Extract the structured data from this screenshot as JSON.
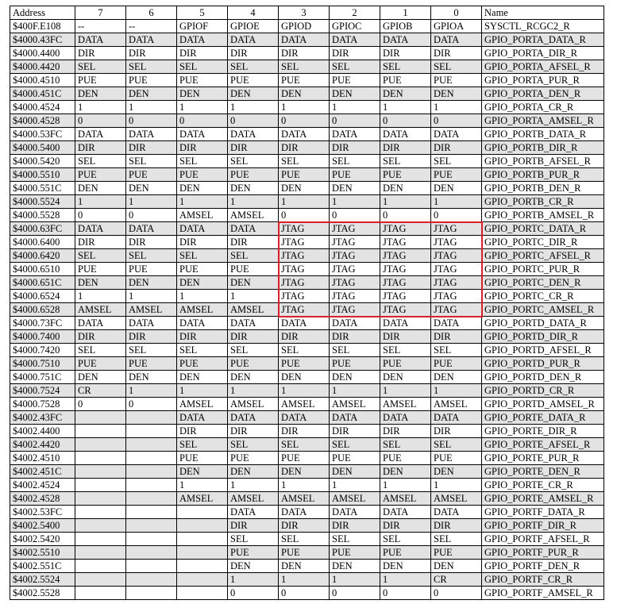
{
  "headers": [
    "Address",
    "7",
    "6",
    "5",
    "4",
    "3",
    "2",
    "1",
    "0",
    "Name"
  ],
  "rows": [
    [
      "$400F.E108",
      "--",
      "--",
      "GPIOF",
      "GPIOE",
      "GPIOD",
      "GPIOC",
      "GPIOB",
      "GPIOA",
      "SYSCTL_RCGC2_R"
    ],
    [
      "$4000.43FC",
      "DATA",
      "DATA",
      "DATA",
      "DATA",
      "DATA",
      "DATA",
      "DATA",
      "DATA",
      "GPIO_PORTA_DATA_R"
    ],
    [
      "$4000.4400",
      "DIR",
      "DIR",
      "DIR",
      "DIR",
      "DIR",
      "DIR",
      "DIR",
      "DIR",
      "GPIO_PORTA_DIR_R"
    ],
    [
      "$4000.4420",
      "SEL",
      "SEL",
      "SEL",
      "SEL",
      "SEL",
      "SEL",
      "SEL",
      "SEL",
      "GPIO_PORTA_AFSEL_R"
    ],
    [
      "$4000.4510",
      "PUE",
      "PUE",
      "PUE",
      "PUE",
      "PUE",
      "PUE",
      "PUE",
      "PUE",
      "GPIO_PORTA_PUR_R"
    ],
    [
      "$4000.451C",
      "DEN",
      "DEN",
      "DEN",
      "DEN",
      "DEN",
      "DEN",
      "DEN",
      "DEN",
      "GPIO_PORTA_DEN_R"
    ],
    [
      "$4000.4524",
      "1",
      "1",
      "1",
      "1",
      "1",
      "1",
      "1",
      "1",
      "GPIO_PORTA_CR_R"
    ],
    [
      "$4000.4528",
      "0",
      "0",
      "0",
      "0",
      "0",
      "0",
      "0",
      "0",
      "GPIO_PORTA_AMSEL_R"
    ],
    [
      "$4000.53FC",
      "DATA",
      "DATA",
      "DATA",
      "DATA",
      "DATA",
      "DATA",
      "DATA",
      "DATA",
      "GPIO_PORTB_DATA_R"
    ],
    [
      "$4000.5400",
      "DIR",
      "DIR",
      "DIR",
      "DIR",
      "DIR",
      "DIR",
      "DIR",
      "DIR",
      "GPIO_PORTB_DIR_R"
    ],
    [
      "$4000.5420",
      "SEL",
      "SEL",
      "SEL",
      "SEL",
      "SEL",
      "SEL",
      "SEL",
      "SEL",
      "GPIO_PORTB_AFSEL_R"
    ],
    [
      "$4000.5510",
      "PUE",
      "PUE",
      "PUE",
      "PUE",
      "PUE",
      "PUE",
      "PUE",
      "PUE",
      "GPIO_PORTB_PUR_R"
    ],
    [
      "$4000.551C",
      "DEN",
      "DEN",
      "DEN",
      "DEN",
      "DEN",
      "DEN",
      "DEN",
      "DEN",
      "GPIO_PORTB_DEN_R"
    ],
    [
      "$4000.5524",
      "1",
      "1",
      "1",
      "1",
      "1",
      "1",
      "1",
      "1",
      "GPIO_PORTB_CR_R"
    ],
    [
      "$4000.5528",
      "0",
      "0",
      "AMSEL",
      "AMSEL",
      "0",
      "0",
      "0",
      "0",
      "GPIO_PORTB_AMSEL_R"
    ],
    [
      "$4000.63FC",
      "DATA",
      "DATA",
      "DATA",
      "DATA",
      "JTAG",
      "JTAG",
      "JTAG",
      "JTAG",
      "GPIO_PORTC_DATA_R"
    ],
    [
      "$4000.6400",
      "DIR",
      "DIR",
      "DIR",
      "DIR",
      "JTAG",
      "JTAG",
      "JTAG",
      "JTAG",
      "GPIO_PORTC_DIR_R"
    ],
    [
      "$4000.6420",
      "SEL",
      "SEL",
      "SEL",
      "SEL",
      "JTAG",
      "JTAG",
      "JTAG",
      "JTAG",
      "GPIO_PORTC_AFSEL_R"
    ],
    [
      "$4000.6510",
      "PUE",
      "PUE",
      "PUE",
      "PUE",
      "JTAG",
      "JTAG",
      "JTAG",
      "JTAG",
      "GPIO_PORTC_PUR_R"
    ],
    [
      "$4000.651C",
      "DEN",
      "DEN",
      "DEN",
      "DEN",
      "JTAG",
      "JTAG",
      "JTAG",
      "JTAG",
      "GPIO_PORTC_DEN_R"
    ],
    [
      "$4000.6524",
      "1",
      "1",
      "1",
      "1",
      "JTAG",
      "JTAG",
      "JTAG",
      "JTAG",
      "GPIO_PORTC_CR_R"
    ],
    [
      "$4000.6528",
      "AMSEL",
      "AMSEL",
      "AMSEL",
      "AMSEL",
      "JTAG",
      "JTAG",
      "JTAG",
      "JTAG",
      "GPIO_PORTC_AMSEL_R"
    ],
    [
      "$4000.73FC",
      "DATA",
      "DATA",
      "DATA",
      "DATA",
      "DATA",
      "DATA",
      "DATA",
      "DATA",
      "GPIO_PORTD_DATA_R"
    ],
    [
      "$4000.7400",
      "DIR",
      "DIR",
      "DIR",
      "DIR",
      "DIR",
      "DIR",
      "DIR",
      "DIR",
      "GPIO_PORTD_DIR_R"
    ],
    [
      "$4000.7420",
      "SEL",
      "SEL",
      "SEL",
      "SEL",
      "SEL",
      "SEL",
      "SEL",
      "SEL",
      "GPIO_PORTD_AFSEL_R"
    ],
    [
      "$4000.7510",
      "PUE",
      "PUE",
      "PUE",
      "PUE",
      "PUE",
      "PUE",
      "PUE",
      "PUE",
      "GPIO_PORTD_PUR_R"
    ],
    [
      "$4000.751C",
      "DEN",
      "DEN",
      "DEN",
      "DEN",
      "DEN",
      "DEN",
      "DEN",
      "DEN",
      "GPIO_PORTD_DEN_R"
    ],
    [
      "$4000.7524",
      "CR",
      "1",
      "1",
      "1",
      "1",
      "1",
      "1",
      "1",
      "GPIO_PORTD_CR_R"
    ],
    [
      "$4000.7528",
      "0",
      "0",
      "AMSEL",
      "AMSEL",
      "AMSEL",
      "AMSEL",
      "AMSEL",
      "AMSEL",
      "GPIO_PORTD_AMSEL_R"
    ],
    [
      "$4002.43FC",
      "",
      "",
      "DATA",
      "DATA",
      "DATA",
      "DATA",
      "DATA",
      "DATA",
      "GPIO_PORTE_DATA_R"
    ],
    [
      "$4002.4400",
      "",
      "",
      "DIR",
      "DIR",
      "DIR",
      "DIR",
      "DIR",
      "DIR",
      "GPIO_PORTE_DIR_R"
    ],
    [
      "$4002.4420",
      "",
      "",
      "SEL",
      "SEL",
      "SEL",
      "SEL",
      "SEL",
      "SEL",
      "GPIO_PORTE_AFSEL_R"
    ],
    [
      "$4002.4510",
      "",
      "",
      "PUE",
      "PUE",
      "PUE",
      "PUE",
      "PUE",
      "PUE",
      "GPIO_PORTE_PUR_R"
    ],
    [
      "$4002.451C",
      "",
      "",
      "DEN",
      "DEN",
      "DEN",
      "DEN",
      "DEN",
      "DEN",
      "GPIO_PORTE_DEN_R"
    ],
    [
      "$4002.4524",
      "",
      "",
      "1",
      "1",
      "1",
      "1",
      "1",
      "1",
      "GPIO_PORTE_CR_R"
    ],
    [
      "$4002.4528",
      "",
      "",
      "AMSEL",
      "AMSEL",
      "AMSEL",
      "AMSEL",
      "AMSEL",
      "AMSEL",
      "GPIO_PORTE_AMSEL_R"
    ],
    [
      "$4002.53FC",
      "",
      "",
      "",
      "DATA",
      "DATA",
      "DATA",
      "DATA",
      "DATA",
      "GPIO_PORTF_DATA_R"
    ],
    [
      "$4002.5400",
      "",
      "",
      "",
      "DIR",
      "DIR",
      "DIR",
      "DIR",
      "DIR",
      "GPIO_PORTF_DIR_R"
    ],
    [
      "$4002.5420",
      "",
      "",
      "",
      "SEL",
      "SEL",
      "SEL",
      "SEL",
      "SEL",
      "GPIO_PORTF_AFSEL_R"
    ],
    [
      "$4002.5510",
      "",
      "",
      "",
      "PUE",
      "PUE",
      "PUE",
      "PUE",
      "PUE",
      "GPIO_PORTF_PUR_R"
    ],
    [
      "$4002.551C",
      "",
      "",
      "",
      "DEN",
      "DEN",
      "DEN",
      "DEN",
      "DEN",
      "GPIO_PORTF_DEN_R"
    ],
    [
      "$4002.5524",
      "",
      "",
      "",
      "1",
      "1",
      "1",
      "1",
      "CR",
      "GPIO_PORTF_CR_R"
    ],
    [
      "$4002.5528",
      "",
      "",
      "",
      "0",
      "0",
      "0",
      "0",
      "0",
      "GPIO_PORTF_AMSEL_R"
    ]
  ],
  "shaded_rows": [
    1,
    3,
    5,
    7,
    9,
    11,
    13,
    15,
    17,
    19,
    21,
    23,
    25,
    27,
    29,
    31,
    33,
    35,
    37,
    39,
    41
  ],
  "highlight": {
    "color": "#d9202a",
    "from_row": 15,
    "to_row": 21,
    "from_col": 5,
    "to_col": 8
  }
}
